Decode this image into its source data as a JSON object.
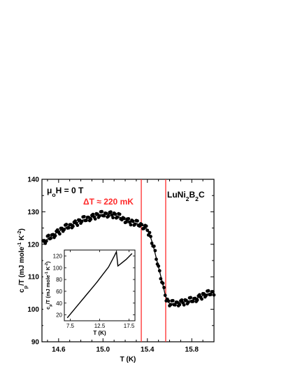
{
  "chart_data": [
    {
      "type": "scatter",
      "title": "",
      "xlabel": "T (K)",
      "ylabel": "c_p/T (mJ mole^-1 K^-2)",
      "xlim": [
        14.45,
        16.0
      ],
      "ylim": [
        90,
        140
      ],
      "xticks": [
        "14.6",
        "15.0",
        "15.4",
        "15.8"
      ],
      "yticks": [
        "90",
        "100",
        "110",
        "120",
        "130",
        "140"
      ],
      "grid": false,
      "annotations": {
        "field": "μ₀H = 0 T",
        "width": "ΔT ≈ 220 mK",
        "sample": "LuNi₂B₂C"
      },
      "vlines": [
        15.345,
        15.565
      ],
      "vline_color": "#ff2a2a",
      "marker_color": "#000000",
      "series": [
        {
          "x": [
            14.46,
            14.48,
            14.5,
            14.52,
            14.54,
            14.56,
            14.58,
            14.6,
            14.62,
            14.64,
            14.66,
            14.68,
            14.7,
            14.72,
            14.74,
            14.76,
            14.78,
            14.8,
            14.82,
            14.84,
            14.86,
            14.88,
            14.9,
            14.92,
            14.94,
            14.96,
            14.98,
            15.0,
            15.02,
            15.04,
            15.06,
            15.08,
            15.1,
            15.12,
            15.14,
            15.16,
            15.18,
            15.2,
            15.22,
            15.24,
            15.26,
            15.28,
            15.3,
            15.32,
            15.34,
            15.36,
            15.38,
            15.4,
            15.42,
            15.44,
            15.46,
            15.48,
            15.5,
            15.52,
            15.54,
            15.56,
            15.58,
            15.6,
            15.62,
            15.64,
            15.66,
            15.68,
            15.7,
            15.72,
            15.74,
            15.76,
            15.78,
            15.8,
            15.82,
            15.84,
            15.86,
            15.88,
            15.9,
            15.92,
            15.94,
            15.96,
            15.98,
            16.0
          ],
          "y": [
            120.5,
            121.0,
            121.6,
            122.1,
            122.6,
            123.0,
            123.5,
            123.9,
            124.3,
            124.7,
            125.0,
            125.4,
            125.7,
            126.0,
            126.3,
            126.6,
            126.9,
            127.2,
            127.5,
            127.7,
            128.0,
            128.2,
            128.4,
            128.6,
            128.8,
            129.0,
            129.1,
            129.2,
            129.3,
            129.3,
            129.3,
            129.2,
            129.0,
            128.8,
            128.5,
            128.2,
            127.9,
            127.6,
            127.3,
            127.0,
            126.8,
            126.6,
            126.4,
            126.2,
            126.0,
            125.7,
            125.3,
            124.5,
            123.0,
            121.0,
            118.5,
            115.8,
            113.0,
            110.3,
            107.5,
            104.5,
            102.5,
            101.8,
            101.7,
            101.8,
            101.9,
            102.0,
            102.1,
            102.2,
            102.3,
            102.4,
            102.6,
            102.8,
            103.0,
            103.3,
            103.6,
            103.9,
            104.2,
            104.5,
            104.7,
            104.9,
            105.1,
            105.3
          ]
        }
      ]
    },
    {
      "type": "line",
      "title": "",
      "xlabel": "T (K)",
      "ylabel": "c_p/T (mJ mole^-1 K^-2)",
      "xlim": [
        6.5,
        18.5
      ],
      "ylim": [
        10,
        130
      ],
      "xticks": [
        "7.5",
        "12.5",
        "17.5"
      ],
      "yticks": [
        "20",
        "40",
        "60",
        "80",
        "100",
        "120"
      ],
      "line_color": "#000000",
      "series": [
        {
          "x": [
            7.0,
            8.0,
            9.0,
            10.0,
            11.0,
            12.0,
            13.0,
            14.0,
            15.0,
            15.35,
            15.6,
            16.0,
            17.0,
            18.0
          ],
          "y": [
            15,
            27,
            39,
            51,
            63,
            75,
            88,
            101,
            120,
            127,
            103,
            106,
            114,
            124
          ]
        }
      ]
    }
  ]
}
